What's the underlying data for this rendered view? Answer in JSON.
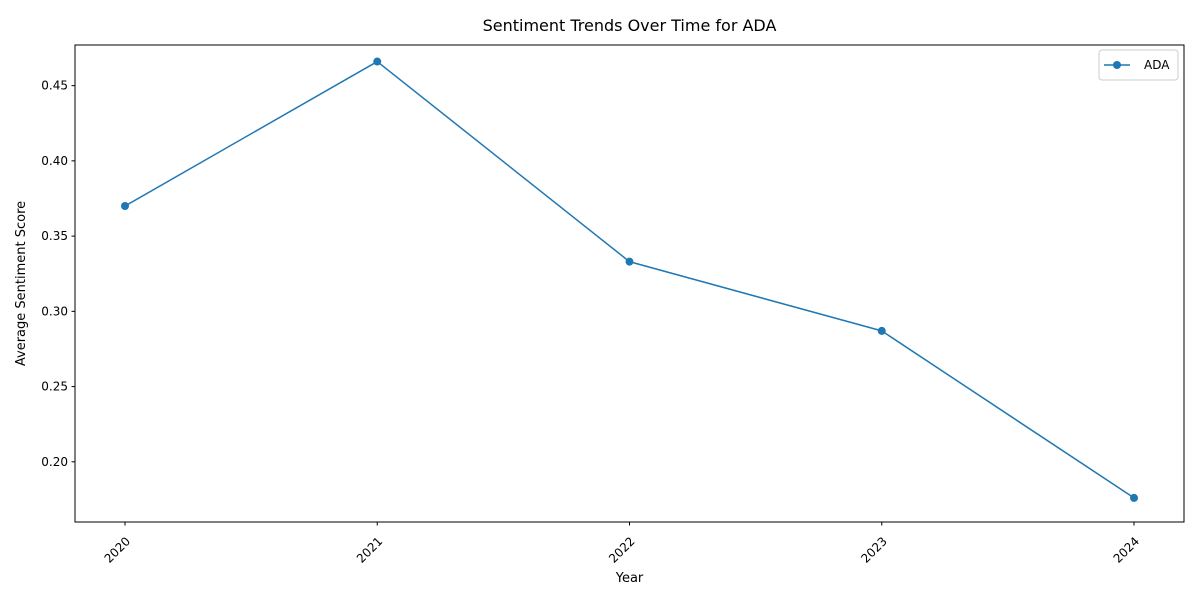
{
  "chart_data": {
    "type": "line",
    "title": "Sentiment Trends Over Time for ADA",
    "xlabel": "Year",
    "ylabel": "Average Sentiment Score",
    "categories": [
      "2020",
      "2021",
      "2022",
      "2023",
      "2024"
    ],
    "series": [
      {
        "name": "ADA",
        "color": "#1f77b4",
        "marker": "circle",
        "values": [
          0.37,
          0.466,
          0.333,
          0.287,
          0.176
        ]
      }
    ],
    "ylim": [
      0.16,
      0.477
    ],
    "yticks": [
      "0.20",
      "0.25",
      "0.30",
      "0.35",
      "0.40",
      "0.45"
    ],
    "grid": false,
    "legend": "top-right",
    "xtick_rotation": 45
  }
}
